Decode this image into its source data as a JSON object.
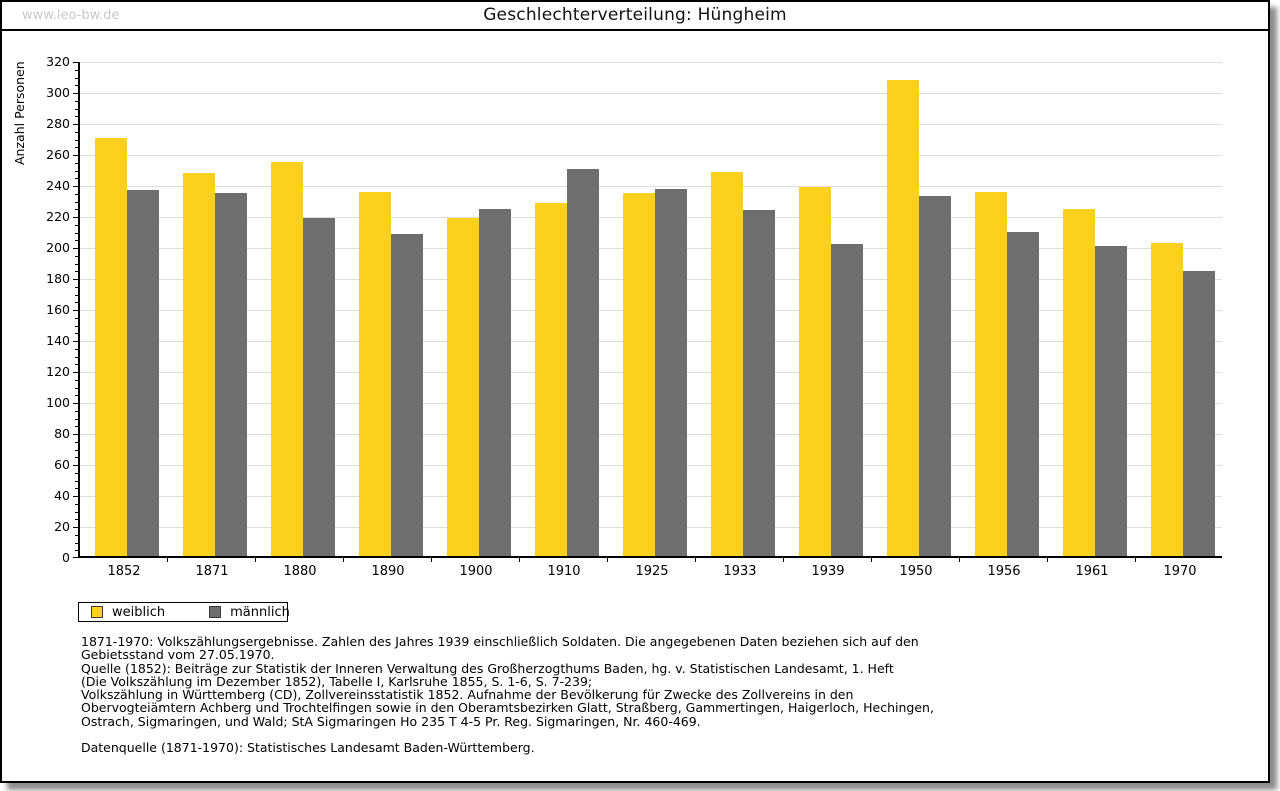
{
  "page": {
    "watermark": "www.leo-bw.de",
    "title": "Geschlechterverteilung: Hüngheim"
  },
  "chart_data": {
    "type": "bar",
    "title": "Geschlechterverteilung: Hüngheim",
    "xlabel": "",
    "ylabel": "Anzahl Personen",
    "ylim": [
      0,
      320
    ],
    "ytick_step": 20,
    "ytick_minor_step": 5,
    "grid": true,
    "legend_position": "bottom-left",
    "categories": [
      "1852",
      "1871",
      "1880",
      "1890",
      "1900",
      "1910",
      "1925",
      "1933",
      "1939",
      "1950",
      "1956",
      "1961",
      "1970"
    ],
    "series": [
      {
        "name": "weiblich",
        "color": "#FCD11E",
        "values": [
          270,
          247,
          254,
          235,
          218,
          228,
          234,
          248,
          238,
          307,
          235,
          224,
          202
        ]
      },
      {
        "name": "männlich",
        "color": "#6E6E6E",
        "values": [
          236,
          234,
          218,
          208,
          224,
          250,
          237,
          223,
          201,
          232,
          209,
          200,
          184
        ]
      }
    ]
  },
  "footnotes": {
    "lines": [
      "1871-1970: Volkszählungsergebnisse. Zahlen des Jahres 1939 einschließlich Soldaten. Die angegebenen Daten beziehen sich auf den",
      "Gebietsstand vom 27.05.1970.",
      "Quelle (1852): Beiträge zur Statistik der Inneren Verwaltung des Großherzogthums Baden, hg. v. Statistischen Landesamt, 1. Heft",
      "(Die Volkszählung im Dezember 1852), Tabelle I, Karlsruhe 1855, S. 1-6, S. 7-239;",
      "Volkszählung in Württemberg (CD), Zollvereinsstatistik 1852. Aufnahme der Bevölkerung für Zwecke des Zollvereins in den",
      "Obervogteiämtern Achberg und Trochtelfingen sowie in den Oberamtsbezirken Glatt, Straßberg, Gammertingen, Haigerloch, Hechingen,",
      "Ostrach, Sigmaringen, und Wald; StA Sigmaringen Ho 235 T 4-5 Pr. Reg. Sigmaringen, Nr. 460-469."
    ],
    "datasource": "Datenquelle (1871-1970): Statistisches Landesamt Baden-Württemberg."
  },
  "colors": {
    "weiblich": "#FCD11E",
    "maennlich": "#6E6E6E",
    "gridline": "#DEDEDE",
    "watermark": "#C8C8C8"
  }
}
